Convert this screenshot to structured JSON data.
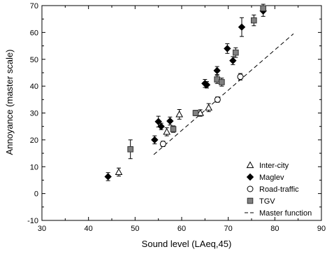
{
  "chart_data": {
    "type": "scatter",
    "xlabel": "Sound level (LAeq,45)",
    "ylabel": "Annoyance (master scale)",
    "xlim": [
      30,
      90
    ],
    "ylim": [
      -10,
      70
    ],
    "x_ticks": [
      "30",
      "40",
      "50",
      "60",
      "70",
      "80",
      "90"
    ],
    "y_ticks": [
      "-10",
      "0",
      "10",
      "20",
      "30",
      "40",
      "50",
      "60",
      "70"
    ],
    "grid": false,
    "legend_position": "bottom-right",
    "series": [
      {
        "name": "Inter-city",
        "marker": "open-triangle",
        "points": [
          {
            "x": 46.5,
            "y": 8.0,
            "err": 1.5
          },
          {
            "x": 56.8,
            "y": 23.0,
            "err": 1.5
          },
          {
            "x": 59.5,
            "y": 29.5,
            "err": 1.8
          },
          {
            "x": 64.0,
            "y": 30.0,
            "err": 1.2
          },
          {
            "x": 65.8,
            "y": 32.0,
            "err": 1.5
          }
        ]
      },
      {
        "name": "Maglev",
        "marker": "filled-diamond",
        "points": [
          {
            "x": 44.2,
            "y": 6.3,
            "err": 1.5
          },
          {
            "x": 54.2,
            "y": 20.0,
            "err": 1.5
          },
          {
            "x": 55.0,
            "y": 26.8,
            "err": 2.0
          },
          {
            "x": 55.6,
            "y": 25.0,
            "err": 1.2
          },
          {
            "x": 57.5,
            "y": 27.0,
            "err": 1.5
          },
          {
            "x": 65.0,
            "y": 41.0,
            "err": 1.5
          },
          {
            "x": 65.4,
            "y": 40.5,
            "err": 1.2
          },
          {
            "x": 67.6,
            "y": 45.8,
            "err": 1.5
          },
          {
            "x": 69.8,
            "y": 54.0,
            "err": 1.8
          },
          {
            "x": 71.0,
            "y": 49.5,
            "err": 1.5
          },
          {
            "x": 72.9,
            "y": 62.0,
            "err": 3.5
          },
          {
            "x": 77.5,
            "y": 68.0,
            "err": 2.0
          }
        ]
      },
      {
        "name": "Road-traffic",
        "marker": "open-circle",
        "points": [
          {
            "x": 56.0,
            "y": 18.5,
            "err": 1.0
          },
          {
            "x": 67.7,
            "y": 35.0,
            "err": 1.0
          },
          {
            "x": 72.6,
            "y": 43.5,
            "err": 1.2
          }
        ]
      },
      {
        "name": "TGV",
        "marker": "filled-square",
        "points": [
          {
            "x": 49.0,
            "y": 16.5,
            "err": 3.5
          },
          {
            "x": 58.2,
            "y": 24.0,
            "err": 1.2
          },
          {
            "x": 63.0,
            "y": 30.0,
            "err": 1.0
          },
          {
            "x": 67.6,
            "y": 42.5,
            "err": 1.5
          },
          {
            "x": 68.6,
            "y": 41.5,
            "err": 1.5
          },
          {
            "x": 71.6,
            "y": 52.5,
            "err": 1.8
          },
          {
            "x": 75.5,
            "y": 64.5,
            "err": 2.0
          },
          {
            "x": 77.5,
            "y": 69.0,
            "err": 1.5
          }
        ]
      }
    ],
    "master_function": {
      "name": "Master function",
      "style": "dashed-line",
      "x": [
        54,
        84
      ],
      "y": [
        14.5,
        59.5
      ]
    }
  }
}
